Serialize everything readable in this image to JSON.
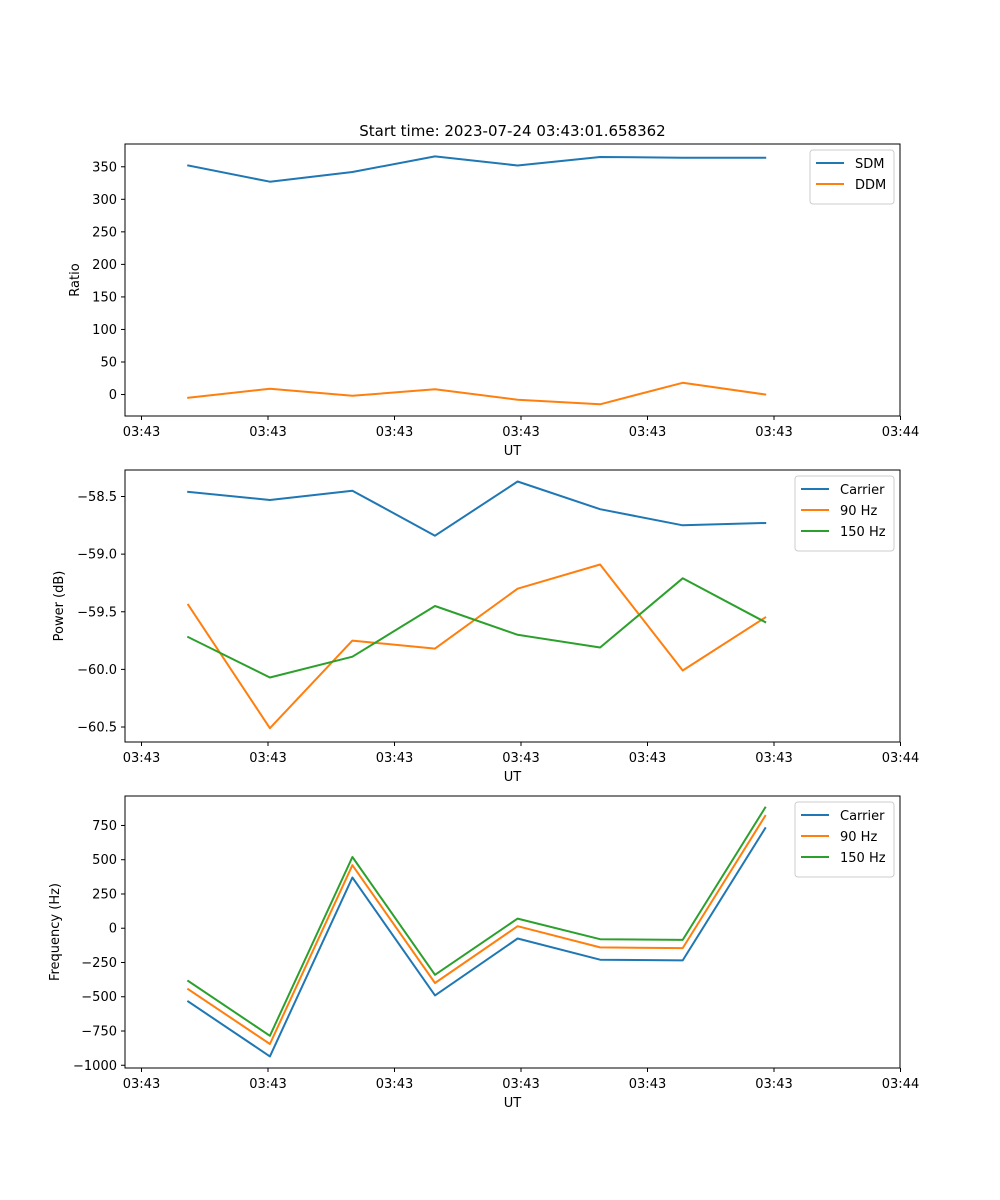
{
  "figure": {
    "title": "Start time: 2023-07-24 03:43:01.658362"
  },
  "chart_data": [
    {
      "type": "line",
      "xlabel": "UT",
      "ylabel": "Ratio",
      "x_tick_labels": [
        "03:43",
        "03:43",
        "03:43",
        "03:43",
        "03:43",
        "03:43",
        "03:44"
      ],
      "xlim": [
        -0.2,
        9.0
      ],
      "ylim": [
        -33,
        385
      ],
      "yticks": [
        0,
        50,
        100,
        150,
        200,
        250,
        300,
        350
      ],
      "ytick_labels": [
        "0",
        "50",
        "100",
        "150",
        "200",
        "250",
        "300",
        "350"
      ],
      "legend": "top-right",
      "x": [
        0.55,
        1.52,
        2.5,
        3.48,
        4.46,
        5.44,
        6.42,
        7.4
      ],
      "series": [
        {
          "name": "SDM",
          "color": "#1f77b4",
          "values": [
            352,
            327,
            342,
            366,
            352,
            365,
            364,
            364
          ]
        },
        {
          "name": "DDM",
          "color": "#ff7f0e",
          "values": [
            -5,
            9,
            -2,
            8,
            -8,
            -15,
            18,
            0
          ]
        }
      ]
    },
    {
      "type": "line",
      "xlabel": "UT",
      "ylabel": "Power (dB)",
      "x_tick_labels": [
        "03:43",
        "03:43",
        "03:43",
        "03:43",
        "03:43",
        "03:43",
        "03:44"
      ],
      "xlim": [
        -0.2,
        9.0
      ],
      "ylim": [
        -60.63,
        -58.27
      ],
      "yticks": [
        -60.5,
        -60.0,
        -59.5,
        -59.0,
        -58.5
      ],
      "ytick_labels": [
        "−60.5",
        "−60.0",
        "−59.5",
        "−59.0",
        "−58.5"
      ],
      "legend": "top-right",
      "x": [
        0.55,
        1.52,
        2.5,
        3.48,
        4.46,
        5.44,
        6.42,
        7.4
      ],
      "series": [
        {
          "name": "Carrier",
          "color": "#1f77b4",
          "values": [
            -58.46,
            -58.53,
            -58.45,
            -58.84,
            -58.37,
            -58.61,
            -58.75,
            -58.73
          ]
        },
        {
          "name": "90 Hz",
          "color": "#ff7f0e",
          "values": [
            -59.44,
            -60.51,
            -59.75,
            -59.82,
            -59.3,
            -59.09,
            -60.01,
            -59.55
          ]
        },
        {
          "name": "150 Hz",
          "color": "#2ca02c",
          "values": [
            -59.72,
            -60.07,
            -59.89,
            -59.45,
            -59.7,
            -59.81,
            -59.21,
            -59.59
          ]
        }
      ]
    },
    {
      "type": "line",
      "xlabel": "UT",
      "ylabel": "Frequency (Hz)",
      "x_tick_labels": [
        "03:43",
        "03:43",
        "03:43",
        "03:43",
        "03:43",
        "03:43",
        "03:44"
      ],
      "xlim": [
        -0.2,
        9.0
      ],
      "ylim": [
        -1020,
        965
      ],
      "yticks": [
        -1000,
        -750,
        -500,
        -250,
        0,
        250,
        500,
        750
      ],
      "ytick_labels": [
        "−1000",
        "−750",
        "−500",
        "−250",
        "0",
        "250",
        "500",
        "750"
      ],
      "legend": "top-right",
      "x": [
        0.55,
        1.52,
        2.5,
        3.48,
        4.46,
        5.44,
        6.42,
        7.4
      ],
      "series": [
        {
          "name": "Carrier",
          "color": "#1f77b4",
          "values": [
            -535,
            -935,
            370,
            -490,
            -75,
            -230,
            -235,
            730
          ]
        },
        {
          "name": "90 Hz",
          "color": "#ff7f0e",
          "values": [
            -445,
            -845,
            460,
            -400,
            15,
            -140,
            -145,
            820
          ]
        },
        {
          "name": "150 Hz",
          "color": "#2ca02c",
          "values": [
            -385,
            -785,
            520,
            -340,
            70,
            -80,
            -85,
            880
          ]
        }
      ]
    }
  ]
}
